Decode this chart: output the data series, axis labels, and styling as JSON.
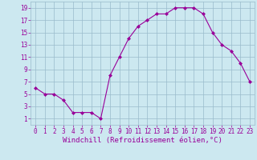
{
  "x": [
    0,
    1,
    2,
    3,
    4,
    5,
    6,
    7,
    8,
    9,
    10,
    11,
    12,
    13,
    14,
    15,
    16,
    17,
    18,
    19,
    20,
    21,
    22,
    23
  ],
  "y": [
    6,
    5,
    5,
    4,
    2,
    2,
    2,
    1,
    8,
    11,
    14,
    16,
    17,
    18,
    18,
    19,
    19,
    19,
    18,
    15,
    13,
    12,
    10,
    7
  ],
  "line_color": "#990099",
  "marker": "D",
  "marker_size": 2.0,
  "line_width": 0.8,
  "bg_color": "#cce8f0",
  "grid_color": "#99bbcc",
  "xlabel": "Windchill (Refroidissement éolien,°C)",
  "xlabel_color": "#990099",
  "xlabel_fontsize": 6.5,
  "tick_color": "#990099",
  "tick_fontsize": 5.5,
  "yticks": [
    1,
    3,
    5,
    7,
    9,
    11,
    13,
    15,
    17,
    19
  ],
  "xticks": [
    0,
    1,
    2,
    3,
    4,
    5,
    6,
    7,
    8,
    9,
    10,
    11,
    12,
    13,
    14,
    15,
    16,
    17,
    18,
    19,
    20,
    21,
    22,
    23
  ],
  "ylim": [
    0,
    20
  ],
  "xlim": [
    -0.5,
    23.5
  ]
}
